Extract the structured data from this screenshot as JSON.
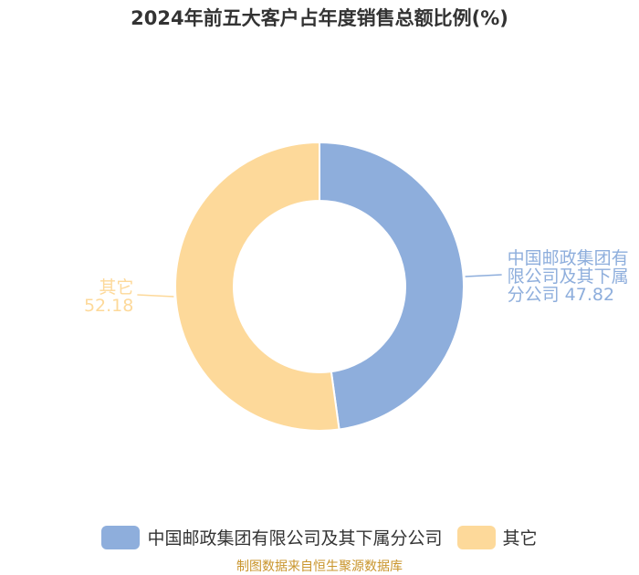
{
  "title": "2024年前五大客户占年度销售总额比例(%)",
  "source": "制图数据来自恒生聚源数据库",
  "colors": {
    "series": [
      "#8eaedc",
      "#fdd99a"
    ],
    "label": [
      "#8eaedc",
      "#fdd99a"
    ]
  },
  "chart_data": {
    "type": "pie",
    "variant": "donut",
    "title": "2024年前五大客户占年度销售总额比例(%)",
    "categories": [
      "中国邮政集团有限公司及其下属分公司",
      "其它"
    ],
    "values": [
      47.82,
      52.18
    ],
    "data_labels": [
      [
        "中国邮政集团有",
        "限公司及其下属",
        "分公司 47.82"
      ],
      [
        "其它",
        "52.18"
      ]
    ],
    "legend": {
      "position": "bottom",
      "entries": [
        "中国邮政集团有限公司及其下属分公司",
        "其它"
      ]
    }
  }
}
